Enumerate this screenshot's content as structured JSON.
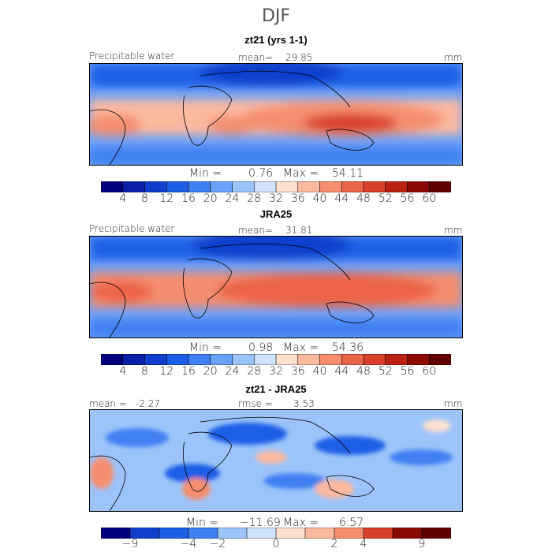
{
  "main_title": "DJF",
  "chart_data": [
    {
      "type": "heatmap",
      "title": "zt21 (yrs 1-1)",
      "variable_label": "Precipitable water",
      "mean_label": "mean=",
      "mean": "29.85",
      "units": "mm",
      "min_label": "Min =",
      "min": "0.76",
      "max_label": "Max =",
      "max": "54.11",
      "colorbar": {
        "ticks": [
          "4",
          "8",
          "12",
          "16",
          "20",
          "24",
          "28",
          "32",
          "36",
          "40",
          "44",
          "48",
          "52",
          "56",
          "60"
        ],
        "colors": [
          "#00007f",
          "#0a1fa6",
          "#0f3fcc",
          "#1d5ee6",
          "#3f80f2",
          "#6aa2f7",
          "#9dc4fa",
          "#cfe2fc",
          "#fde0cf",
          "#fbb9a0",
          "#f58e6f",
          "#ec6447",
          "#d9402a",
          "#bb2113",
          "#8c0a05",
          "#600000"
        ]
      }
    },
    {
      "type": "heatmap",
      "title": "JRA25",
      "variable_label": "Precipitable water",
      "mean_label": "mean=",
      "mean": "31.81",
      "units": "mm",
      "min_label": "Min =",
      "min": "0.98",
      "max_label": "Max =",
      "max": "54.36",
      "colorbar": {
        "ticks": [
          "4",
          "8",
          "12",
          "16",
          "20",
          "24",
          "28",
          "32",
          "36",
          "40",
          "44",
          "48",
          "52",
          "56",
          "60"
        ],
        "colors": [
          "#00007f",
          "#0a1fa6",
          "#0f3fcc",
          "#1d5ee6",
          "#3f80f2",
          "#6aa2f7",
          "#9dc4fa",
          "#cfe2fc",
          "#fde0cf",
          "#fbb9a0",
          "#f58e6f",
          "#ec6447",
          "#d9402a",
          "#bb2113",
          "#8c0a05",
          "#600000"
        ]
      }
    },
    {
      "type": "heatmap",
      "title": "zt21 - JRA25",
      "mean_label": "mean =",
      "mean": "-2.27",
      "rmse_label": "rmse =",
      "rmse": "3.53",
      "units": "mm",
      "min_label": "Min =",
      "min": "−11.69",
      "max_label": "Max =",
      "max": "6.57",
      "colorbar": {
        "ticks": [
          "−9",
          "−4",
          "−2",
          "0",
          "2",
          "4",
          "9"
        ],
        "colors": [
          "#00007f",
          "#0f3fcc",
          "#1d5ee6",
          "#3f80f2",
          "#9dc4fa",
          "#cfe2fc",
          "#fde0cf",
          "#fbb9a0",
          "#f58e6f",
          "#d9402a",
          "#8c0a05",
          "#600000"
        ]
      }
    }
  ]
}
